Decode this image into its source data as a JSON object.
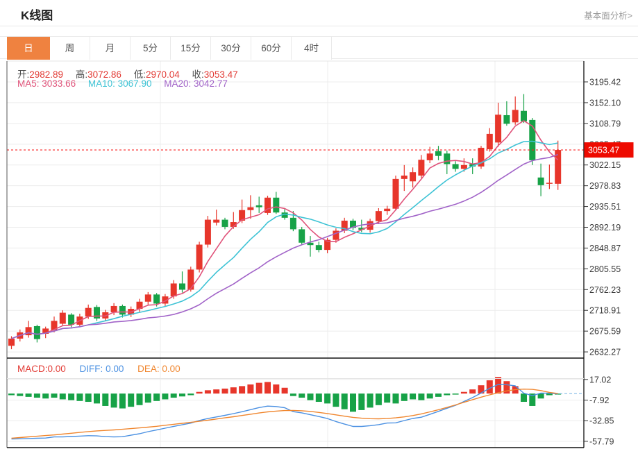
{
  "header": {
    "title": "K线图",
    "link": "基本面分析>"
  },
  "tabs": [
    {
      "label": "日",
      "active": true
    },
    {
      "label": "周",
      "active": false
    },
    {
      "label": "月",
      "active": false
    },
    {
      "label": "5分",
      "active": false
    },
    {
      "label": "15分",
      "active": false
    },
    {
      "label": "30分",
      "active": false
    },
    {
      "label": "60分",
      "active": false
    },
    {
      "label": "4时",
      "active": false
    }
  ],
  "quote": {
    "open_label": "开:",
    "open": "2982.89",
    "high_label": "高:",
    "high": "3072.86",
    "low_label": "低:",
    "low": "2970.04",
    "close_label": "收:",
    "close": "3053.47"
  },
  "ma": {
    "ma5_label": "MA5:",
    "ma5": "3033.66",
    "ma10_label": "MA10:",
    "ma10": "3067.90",
    "ma20_label": "MA20:",
    "ma20": "3042.77"
  },
  "macd_header": {
    "macd_label": "MACD:",
    "macd": "0.00",
    "diff_label": "DIFF:",
    "diff": "0.00",
    "dea_label": "DEA:",
    "dea": "0.00"
  },
  "last_price_badge": "3053.47",
  "colors": {
    "accent_orange": "#ef8240",
    "red": "#e23b35",
    "candle_up": "#e7362b",
    "candle_down": "#17a247",
    "ma5": "#e0537a",
    "ma10": "#3ec3d5",
    "ma20": "#a163c8",
    "diff": "#4a90e2",
    "dea": "#f0862e",
    "badge": "#ee0a00",
    "dotted_price_line": "#fa2020",
    "macd_dashed_line": "#8fc2e8",
    "grid": "#ececec",
    "axis_text": "#3a3a3a"
  },
  "chart_data": {
    "type": "candlestick+macd",
    "title": "K线图 daily candlestick with MA5/MA10/MA20 and MACD",
    "price_axis_ticks": [
      "3195.42",
      "3152.10",
      "3108.79",
      "3065.47",
      "3022.15",
      "2978.83",
      "2935.51",
      "2892.19",
      "2848.87",
      "2805.55",
      "2762.23",
      "2718.91",
      "2675.59",
      "2632.27"
    ],
    "macd_axis_ticks": [
      "17.02",
      "-7.92",
      "-32.85",
      "-57.79"
    ],
    "ylim": [
      2632.27,
      3195.42
    ],
    "macd_ylim": [
      -70,
      25
    ],
    "grid": true,
    "legend_position": "top-left-inline",
    "last_price": 3053.47,
    "ma_periods": [
      5,
      10,
      20
    ],
    "candles": [
      [
        2645,
        2665,
        2638,
        2660
      ],
      [
        2660,
        2679,
        2654,
        2673
      ],
      [
        2667,
        2697,
        2662,
        2684
      ],
      [
        2686,
        2689,
        2652,
        2659
      ],
      [
        2670,
        2685,
        2661,
        2681
      ],
      [
        2678,
        2706,
        2673,
        2697
      ],
      [
        2691,
        2719,
        2687,
        2714
      ],
      [
        2710,
        2713,
        2684,
        2689
      ],
      [
        2689,
        2712,
        2684,
        2706
      ],
      [
        2706,
        2731,
        2701,
        2724
      ],
      [
        2726,
        2730,
        2697,
        2702
      ],
      [
        2702,
        2720,
        2696,
        2715
      ],
      [
        2715,
        2734,
        2709,
        2728
      ],
      [
        2728,
        2731,
        2704,
        2710
      ],
      [
        2710,
        2727,
        2705,
        2722
      ],
      [
        2722,
        2743,
        2716,
        2737
      ],
      [
        2737,
        2757,
        2731,
        2752
      ],
      [
        2752,
        2755,
        2727,
        2733
      ],
      [
        2733,
        2753,
        2728,
        2748
      ],
      [
        2748,
        2782,
        2743,
        2775
      ],
      [
        2775,
        2800,
        2756,
        2762
      ],
      [
        2762,
        2810,
        2758,
        2804
      ],
      [
        2804,
        2862,
        2798,
        2856
      ],
      [
        2856,
        2916,
        2850,
        2908
      ],
      [
        2902,
        2929,
        2896,
        2908
      ],
      [
        2908,
        2912,
        2888,
        2893
      ],
      [
        2893,
        2924,
        2889,
        2903
      ],
      [
        2906,
        2950,
        2901,
        2928
      ],
      [
        2928,
        2959,
        2910,
        2934
      ],
      [
        2938,
        2956,
        2922,
        2934
      ],
      [
        2922,
        2958,
        2918,
        2954
      ],
      [
        2954,
        2966,
        2920,
        2923
      ],
      [
        2923,
        2930,
        2908,
        2912
      ],
      [
        2912,
        2926,
        2884,
        2888
      ],
      [
        2888,
        2893,
        2856,
        2860
      ],
      [
        2860,
        2874,
        2831,
        2855
      ],
      [
        2855,
        2862,
        2840,
        2845
      ],
      [
        2845,
        2870,
        2838,
        2866
      ],
      [
        2866,
        2890,
        2860,
        2885
      ],
      [
        2885,
        2912,
        2880,
        2906
      ],
      [
        2906,
        2910,
        2886,
        2891
      ],
      [
        2891,
        2908,
        2882,
        2887
      ],
      [
        2887,
        2910,
        2881,
        2905
      ],
      [
        2905,
        2932,
        2899,
        2926
      ],
      [
        2926,
        2937,
        2918,
        2931
      ],
      [
        2931,
        3000,
        2928,
        2993
      ],
      [
        2993,
        3022,
        2968,
        3000
      ],
      [
        2988,
        3017,
        2975,
        3007
      ],
      [
        3000,
        3043,
        2995,
        3033
      ],
      [
        3032,
        3060,
        3026,
        3046
      ],
      [
        3051,
        3062,
        3032,
        3041
      ],
      [
        3046,
        3052,
        3003,
        3024
      ],
      [
        3024,
        3030,
        3008,
        3014
      ],
      [
        3014,
        3036,
        3008,
        3022
      ],
      [
        3024,
        3036,
        3003,
        3019
      ],
      [
        3019,
        3062,
        3014,
        3058
      ],
      [
        3055,
        3099,
        3050,
        3087
      ],
      [
        3069,
        3152,
        3060,
        3127
      ],
      [
        3126,
        3155,
        3104,
        3108
      ],
      [
        3111,
        3165,
        3106,
        3137
      ],
      [
        3135,
        3170,
        3110,
        3113
      ],
      [
        3116,
        3120,
        3022,
        3032
      ],
      [
        2996,
        3025,
        2957,
        2980
      ],
      [
        2983,
        3023,
        2972,
        2985
      ],
      [
        2982.89,
        3072.86,
        2970.04,
        3053.47
      ]
    ],
    "macd_hist": [
      -2,
      -3,
      -4,
      -5,
      -6,
      -5,
      -7,
      -8,
      -9,
      -10,
      -12,
      -15,
      -17,
      -18,
      -16,
      -14,
      -11,
      -9,
      -7,
      -5,
      -3.5,
      -2,
      2,
      4,
      5,
      6,
      7.5,
      9,
      11,
      13,
      14,
      11,
      7,
      -3,
      -5,
      -8,
      -10,
      -12,
      -16,
      -19,
      -22,
      -20,
      -17,
      -14,
      -11,
      -12,
      -9,
      -7,
      -8,
      -6,
      -4,
      -2,
      -1,
      2,
      5,
      10,
      16,
      20,
      15,
      9,
      -10,
      -15,
      -6,
      -2,
      -1
    ],
    "dea": [
      -54,
      -53.2,
      -52.4,
      -51.6,
      -50.8,
      -50,
      -49,
      -48,
      -47,
      -46,
      -45.2,
      -44.6,
      -44,
      -43.2,
      -42.4,
      -41.6,
      -40.6,
      -39.6,
      -38.4,
      -37.2,
      -36,
      -34.8,
      -33.6,
      -32.2,
      -30.8,
      -29.4,
      -28,
      -26.5,
      -25,
      -23.5,
      -22.2,
      -21.2,
      -20.6,
      -20.4,
      -20.8,
      -21.6,
      -22.8,
      -24.2,
      -25.8,
      -27.4,
      -28.8,
      -29.8,
      -30.4,
      -30.6,
      -30.2,
      -29.4,
      -28.2,
      -26.6,
      -24.6,
      -22.2,
      -19.6,
      -16.8,
      -13.8,
      -10.6,
      -7.4,
      -4.4,
      -1.6,
      1,
      3.2,
      4.8,
      5.4,
      5,
      3.6,
      1.4,
      0
    ]
  }
}
